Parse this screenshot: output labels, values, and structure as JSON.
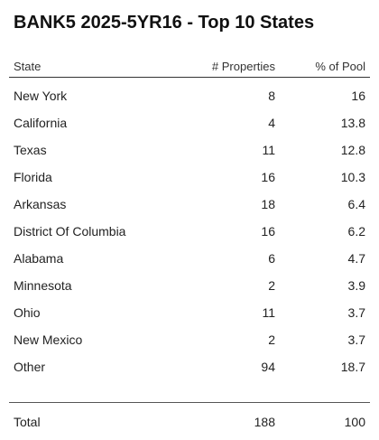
{
  "title": "BANK5 2025-5YR16 - Top 10 States",
  "columns": {
    "state": "State",
    "properties": "# Properties",
    "pool": "% of Pool"
  },
  "rows": [
    {
      "state": "New York",
      "properties": "8",
      "pool": "16"
    },
    {
      "state": "California",
      "properties": "4",
      "pool": "13.8"
    },
    {
      "state": "Texas",
      "properties": "11",
      "pool": "12.8"
    },
    {
      "state": "Florida",
      "properties": "16",
      "pool": "10.3"
    },
    {
      "state": "Arkansas",
      "properties": "18",
      "pool": "6.4"
    },
    {
      "state": "District Of Columbia",
      "properties": "16",
      "pool": "6.2"
    },
    {
      "state": "Alabama",
      "properties": "6",
      "pool": "4.7"
    },
    {
      "state": "Minnesota",
      "properties": "2",
      "pool": "3.9"
    },
    {
      "state": "Ohio",
      "properties": "11",
      "pool": "3.7"
    },
    {
      "state": "New Mexico",
      "properties": "2",
      "pool": "3.7"
    },
    {
      "state": "Other",
      "properties": "94",
      "pool": "18.7"
    }
  ],
  "total": {
    "label": "Total",
    "properties": "188",
    "pool": "100"
  }
}
